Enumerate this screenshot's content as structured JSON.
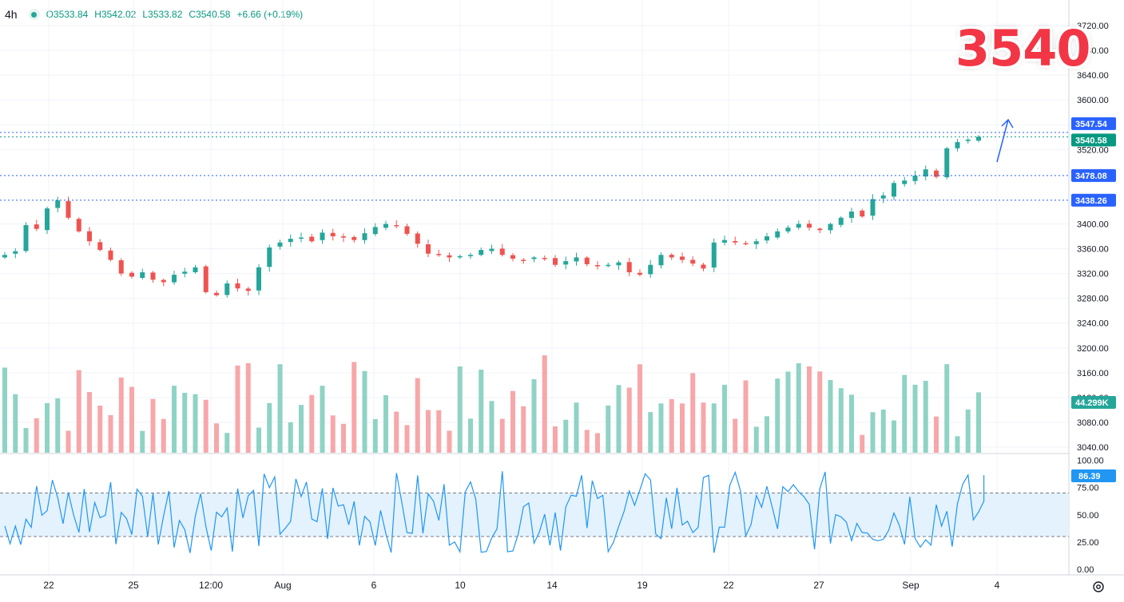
{
  "legend": {
    "timeframe": "4h",
    "open": "O3533.84",
    "high": "H3542.02",
    "low": "L3533.82",
    "close": "C3540.58",
    "change": "+6.66 (+0.19%)"
  },
  "overlay_text": "3540",
  "colors": {
    "up": "#26a69a",
    "down": "#ef5350",
    "vol_up": "#8fd3c5",
    "vol_down": "#f7a7a9",
    "level_line": "#2962ff",
    "rsi_line": "#2196f3",
    "rsi_band": "#e3f2fd",
    "overlay_text": "#f23645"
  },
  "chart_data": [
    {
      "type": "candlestick",
      "instrument_timeframe": "4h",
      "ylim": [
        3020,
        3730
      ],
      "y_ticks": [
        "3720.00",
        "3680.00",
        "3640.00",
        "3600.00",
        "3560.00",
        "3520.00",
        "3400.00",
        "3360.00",
        "3320.00",
        "3280.00",
        "3240.00",
        "3200.00",
        "3160.00",
        "3120.00",
        "3080.00",
        "3040.00"
      ],
      "x_tick_labels": [
        "22",
        "25",
        "12:00",
        "Aug",
        "6",
        "10",
        "14",
        "19",
        "22",
        "27",
        "Sep",
        "4"
      ],
      "price_labels": [
        {
          "value": "3547.54",
          "style": "level"
        },
        {
          "value": "3540.58",
          "style": "last-price"
        },
        {
          "value": "3478.08",
          "style": "level"
        },
        {
          "value": "3438.26",
          "style": "level"
        }
      ],
      "horizontal_levels": [
        3547.54,
        3540.58,
        3478.08,
        3438.26
      ],
      "approx_path_close": [
        3350,
        3356,
        3398,
        3392,
        3425,
        3438,
        3410,
        3388,
        3372,
        3358,
        3342,
        3320,
        3315,
        3322,
        3310,
        3306,
        3318,
        3323,
        3330,
        3290,
        3285,
        3304,
        3296,
        3292,
        3330,
        3362,
        3370,
        3376,
        3378,
        3372,
        3386,
        3380,
        3378,
        3374,
        3385,
        3395,
        3400,
        3398,
        3384,
        3368,
        3352,
        3350,
        3346,
        3348,
        3350,
        3358,
        3360,
        3350,
        3344,
        3342,
        3346,
        3344,
        3334,
        3340,
        3346,
        3335,
        3332,
        3334,
        3338,
        3322,
        3318,
        3334,
        3350,
        3346,
        3342,
        3336,
        3328,
        3370,
        3374,
        3370,
        3368,
        3372,
        3380,
        3388,
        3394,
        3400,
        3394,
        3390,
        3400,
        3410,
        3420,
        3412,
        3440,
        3446,
        3466,
        3470,
        3478,
        3488,
        3476,
        3522,
        3532,
        3536,
        3540.58
      ],
      "last_volume_label": "44.299K",
      "volume_tick_label": "3120.00"
    },
    {
      "type": "line",
      "name": "RSI",
      "ylim": [
        0,
        100
      ],
      "y_ticks": [
        "100.00",
        "75.00",
        "50.00",
        "25.00",
        "0.00"
      ],
      "bands": [
        30,
        70
      ],
      "last_value": "86.39"
    }
  ]
}
